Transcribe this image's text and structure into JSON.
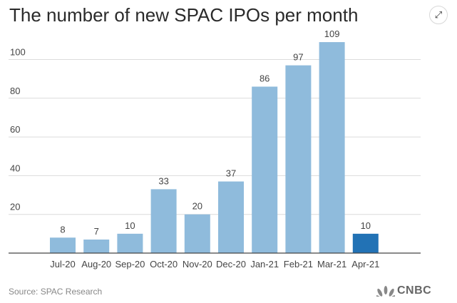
{
  "chart_data": {
    "type": "bar",
    "title": "The number of new SPAC IPOs per month",
    "categories": [
      "Jul-20",
      "Aug-20",
      "Sep-20",
      "Oct-20",
      "Nov-20",
      "Dec-20",
      "Jan-21",
      "Feb-21",
      "Mar-21",
      "Apr-21"
    ],
    "values": [
      8,
      7,
      10,
      33,
      20,
      37,
      86,
      97,
      109,
      10
    ],
    "highlight_index": 9,
    "yticks": [
      20,
      40,
      60,
      80,
      100
    ],
    "ylim": [
      0,
      109
    ],
    "xlabel": "",
    "ylabel": "",
    "grid": true,
    "colors": {
      "bar": "#8fbbdc",
      "highlight": "#2272b5",
      "grid": "#dcdcdc",
      "axis": "#444444",
      "text": "#444444"
    }
  },
  "source": "Source: SPAC Research",
  "logo_text": "CNBC",
  "icons": {
    "expand": "expand-arrows-icon",
    "logo": "peacock-icon"
  }
}
